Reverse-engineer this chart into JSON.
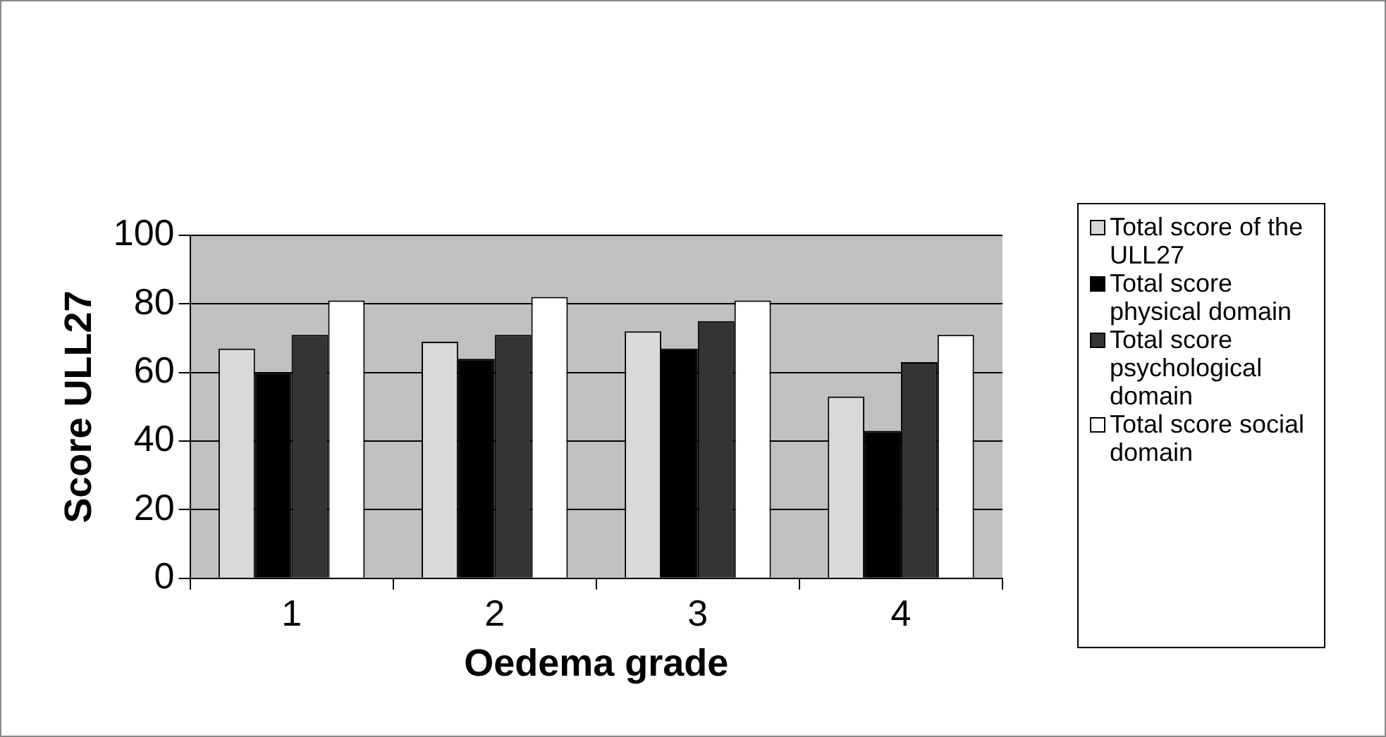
{
  "chart_data": {
    "type": "bar",
    "xlabel": "Oedema grade",
    "ylabel": "Score ULL27",
    "categories": [
      "1",
      "2",
      "3",
      "4"
    ],
    "series": [
      {
        "name": "Total score of the ULL27",
        "color": "#d9d9d9",
        "values": [
          67,
          69,
          72,
          53
        ]
      },
      {
        "name": "Total score physical domain",
        "color": "#000000",
        "values": [
          60,
          64,
          67,
          43
        ]
      },
      {
        "name": "Total score psychological domain",
        "color": "#333333",
        "values": [
          71,
          71,
          75,
          63
        ]
      },
      {
        "name": "Total score social domain",
        "color": "#ffffff",
        "values": [
          81,
          82,
          81,
          71
        ]
      }
    ],
    "ylim": [
      0,
      100
    ],
    "yticks": [
      0,
      20,
      40,
      60,
      80,
      100
    ],
    "grid": "y",
    "legend": "right"
  }
}
